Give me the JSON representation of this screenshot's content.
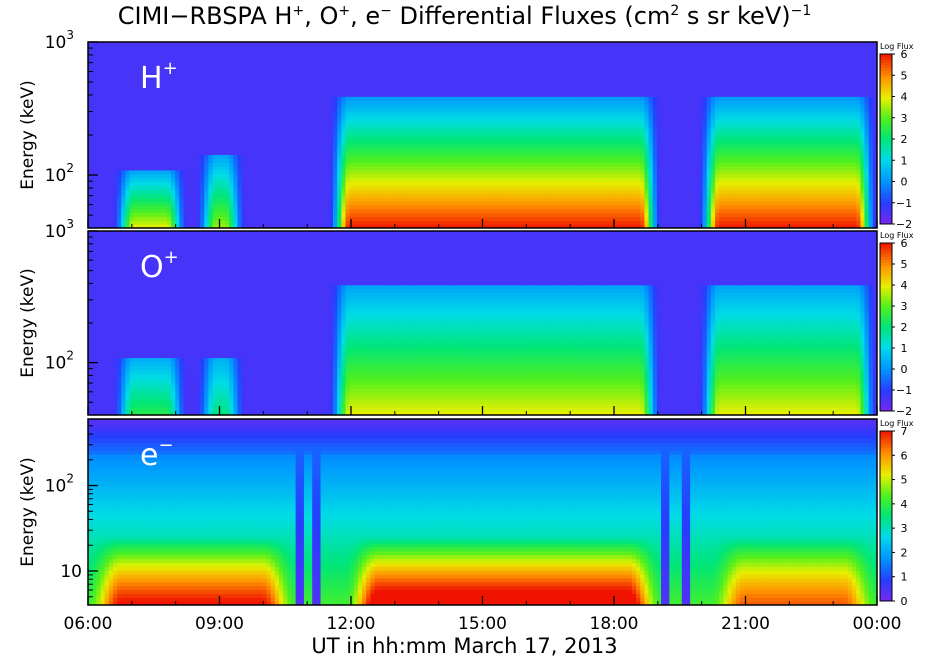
{
  "title_parts": {
    "prefix": "CIMI−RBSPA H",
    "sup1": "+",
    "mid1": ", O",
    "sup2": "+",
    "mid2": ", e",
    "sup3": "−",
    "mid3": " Differential Fluxes (cm",
    "sup4": "2",
    "mid4": " s sr keV)",
    "sup5": "−1"
  },
  "xlabel": "UT in hh:mm March 17, 2013",
  "colorbar_title": "Log Flux",
  "chart_data": [
    {
      "type": "heatmap",
      "panel": "H+",
      "species_label": "H",
      "species_sup": "+",
      "ylabel": "Energy (keV)",
      "yscale": "log",
      "ylim": [
        40,
        1000
      ],
      "ytick_labels": [
        "10",
        "2",
        "10",
        "3"
      ],
      "yticks": [
        100,
        1000
      ],
      "xticks": [
        "06:00",
        "09:00",
        "12:00",
        "15:00",
        "18:00",
        "21:00",
        "00:00"
      ],
      "xlim_hours": [
        5,
        24
      ],
      "grid": false,
      "colorbar": {
        "label": "Log Flux",
        "min": -2,
        "max": 6,
        "ticks": [
          6,
          5,
          4,
          3,
          2,
          1,
          0,
          -1,
          -2
        ]
      },
      "top_energy_cutoff_keV": 400,
      "features": [
        {
          "t_start": 5.6,
          "t_end": 7.4,
          "peak_log_flux": 4,
          "top_keV": 110
        },
        {
          "t_start": 7.6,
          "t_end": 8.8,
          "peak_log_flux": 3.5,
          "top_keV": 140
        },
        {
          "t_start": 10.8,
          "t_end": 18.8,
          "peak_log_flux": 6,
          "top_keV": 400
        },
        {
          "t_start": 19.7,
          "t_end": 24.0,
          "peak_log_flux": 6,
          "top_keV": 400
        }
      ]
    },
    {
      "type": "heatmap",
      "panel": "O+",
      "species_label": "O",
      "species_sup": "+",
      "ylabel": "Energy (keV)",
      "yscale": "log",
      "ylim": [
        40,
        1000
      ],
      "ytick_labels": [
        "10",
        "2",
        "10",
        "3"
      ],
      "yticks": [
        100,
        1000
      ],
      "xticks": [
        "06:00",
        "09:00",
        "12:00",
        "15:00",
        "18:00",
        "21:00",
        "00:00"
      ],
      "xlim_hours": [
        5,
        24
      ],
      "grid": false,
      "colorbar": {
        "label": "Log Flux",
        "min": -2,
        "max": 6,
        "ticks": [
          6,
          5,
          4,
          3,
          2,
          1,
          0,
          -1,
          -2
        ]
      },
      "top_energy_cutoff_keV": 400,
      "features": [
        {
          "t_start": 5.6,
          "t_end": 7.4,
          "peak_log_flux": 2.5,
          "top_keV": 110
        },
        {
          "t_start": 7.6,
          "t_end": 8.8,
          "peak_log_flux": 2,
          "top_keV": 110
        },
        {
          "t_start": 10.8,
          "t_end": 18.8,
          "peak_log_flux": 4,
          "top_keV": 400
        },
        {
          "t_start": 19.7,
          "t_end": 24.0,
          "peak_log_flux": 4,
          "top_keV": 400
        }
      ]
    },
    {
      "type": "heatmap",
      "panel": "e-",
      "species_label": "e",
      "species_sup": "−",
      "ylabel": "Energy (keV)",
      "yscale": "log",
      "ylim": [
        4,
        600
      ],
      "ytick_labels": [
        "10",
        "10",
        "2"
      ],
      "yticks": [
        10,
        100
      ],
      "xticks": [
        "06:00",
        "09:00",
        "12:00",
        "15:00",
        "18:00",
        "21:00",
        "00:00"
      ],
      "xlim_hours": [
        5,
        24
      ],
      "grid": false,
      "colorbar": {
        "label": "Log Flux",
        "min": 0,
        "max": 7,
        "ticks": [
          7,
          6,
          5,
          4,
          3,
          2,
          1,
          0
        ]
      },
      "features": [
        {
          "t_start": 5.0,
          "t_end": 10.0,
          "peak_log_flux": 6.5,
          "bottom_band_keV": 6
        },
        {
          "t_start": 11.2,
          "t_end": 18.8,
          "peak_log_flux": 7,
          "bottom_band_keV": 6
        },
        {
          "t_start": 20.0,
          "t_end": 24.0,
          "peak_log_flux": 6,
          "bottom_band_keV": 6
        }
      ],
      "dropouts_hours": [
        10.1,
        10.5,
        18.9,
        19.4
      ]
    }
  ]
}
